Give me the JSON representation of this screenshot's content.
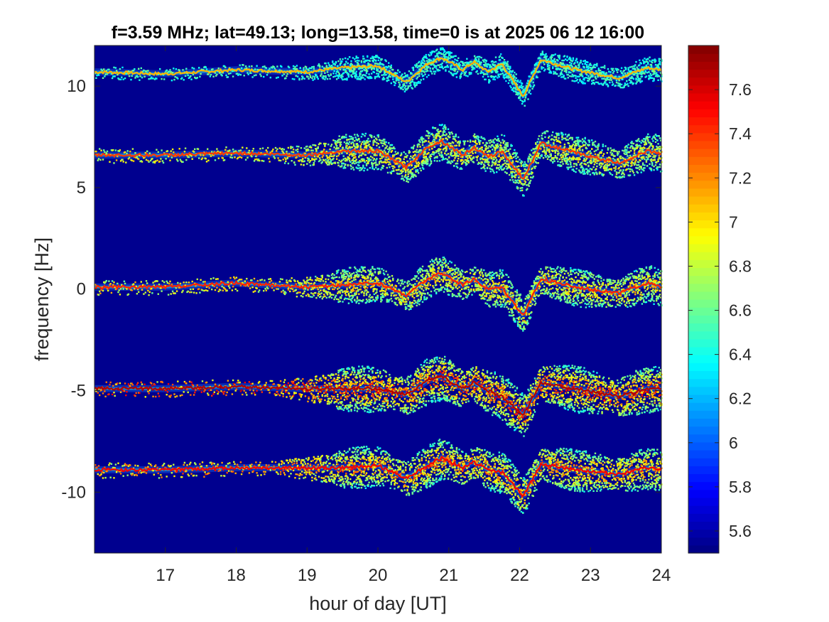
{
  "chart_data": {
    "type": "heatmap",
    "title": "f=3.59 MHz;  lat=49.13; long=13.58, time=0 is at 2025 06 12 16:00",
    "xlabel": "hour of day [UT]",
    "ylabel": "frequency [Hz]",
    "xlim": [
      16.0,
      24.0
    ],
    "ylim": [
      -13.0,
      12.0
    ],
    "x_ticks": [
      17,
      18,
      19,
      20,
      21,
      22,
      23,
      24
    ],
    "x_tick_labels": [
      "17",
      "18",
      "19",
      "20",
      "21",
      "22",
      "23",
      "24"
    ],
    "y_ticks": [
      10,
      5,
      0,
      -5,
      -10
    ],
    "y_tick_labels": [
      "10",
      "5",
      "0",
      "-5",
      "-10"
    ],
    "colorbar": {
      "range": [
        5.5,
        7.8
      ],
      "ticks": [
        7.6,
        7.4,
        7.2,
        7,
        6.8,
        6.6,
        6.4,
        6.2,
        6,
        5.8,
        5.6
      ],
      "tick_labels": [
        "7.6",
        "7.4",
        "7.2",
        "7",
        "6.8",
        "6.6",
        "6.4",
        "6.2",
        "6",
        "5.8",
        "5.6"
      ],
      "colormap": "jet"
    },
    "background_color": "#00008f",
    "traces": [
      {
        "base": 10.7,
        "intensity": 0.35,
        "spread": 0.06,
        "points": [
          [
            16.0,
            10.7
          ],
          [
            17.0,
            10.6
          ],
          [
            18.0,
            10.8
          ],
          [
            19.0,
            10.7
          ],
          [
            19.5,
            10.9
          ],
          [
            20.0,
            11.0
          ],
          [
            20.4,
            10.2
          ],
          [
            20.7,
            11.1
          ],
          [
            20.9,
            11.4
          ],
          [
            21.2,
            10.8
          ],
          [
            21.35,
            11.2
          ],
          [
            21.55,
            10.7
          ],
          [
            21.75,
            11.1
          ],
          [
            22.05,
            9.5
          ],
          [
            22.3,
            11.3
          ],
          [
            22.8,
            10.8
          ],
          [
            23.4,
            10.4
          ],
          [
            23.8,
            10.9
          ],
          [
            24.0,
            10.8
          ]
        ]
      },
      {
        "base": 6.6,
        "intensity": 0.65,
        "spread": 0.12,
        "points": [
          [
            16.0,
            6.6
          ],
          [
            17.0,
            6.6
          ],
          [
            18.0,
            6.7
          ],
          [
            19.0,
            6.6
          ],
          [
            19.5,
            6.8
          ],
          [
            20.0,
            6.8
          ],
          [
            20.4,
            6.0
          ],
          [
            20.7,
            7.0
          ],
          [
            20.9,
            7.3
          ],
          [
            21.2,
            6.6
          ],
          [
            21.35,
            7.0
          ],
          [
            21.55,
            6.5
          ],
          [
            21.75,
            6.8
          ],
          [
            22.05,
            5.4
          ],
          [
            22.3,
            7.2
          ],
          [
            22.8,
            6.7
          ],
          [
            23.4,
            6.2
          ],
          [
            23.8,
            6.8
          ],
          [
            24.0,
            6.7
          ]
        ]
      },
      {
        "base": 0.1,
        "intensity": 0.7,
        "spread": 0.12,
        "points": [
          [
            16.0,
            0.1
          ],
          [
            17.0,
            0.1
          ],
          [
            18.0,
            0.3
          ],
          [
            19.0,
            0.1
          ],
          [
            19.5,
            0.2
          ],
          [
            20.0,
            0.3
          ],
          [
            20.4,
            -0.3
          ],
          [
            20.7,
            0.5
          ],
          [
            20.9,
            0.8
          ],
          [
            21.2,
            0.2
          ],
          [
            21.35,
            0.5
          ],
          [
            21.55,
            0.0
          ],
          [
            21.75,
            0.1
          ],
          [
            22.05,
            -1.3
          ],
          [
            22.3,
            0.5
          ],
          [
            22.8,
            0.1
          ],
          [
            23.4,
            -0.2
          ],
          [
            23.8,
            0.3
          ],
          [
            24.0,
            0.1
          ]
        ]
      },
      {
        "base": -4.9,
        "intensity": 0.95,
        "spread": 0.16,
        "points": [
          [
            16.0,
            -4.9
          ],
          [
            17.0,
            -4.9
          ],
          [
            18.0,
            -4.8
          ],
          [
            19.0,
            -4.9
          ],
          [
            19.5,
            -4.9
          ],
          [
            20.0,
            -4.9
          ],
          [
            20.4,
            -5.2
          ],
          [
            20.7,
            -4.5
          ],
          [
            20.9,
            -4.3
          ],
          [
            21.2,
            -4.9
          ],
          [
            21.35,
            -4.6
          ],
          [
            21.55,
            -5.0
          ],
          [
            21.75,
            -5.3
          ],
          [
            22.05,
            -6.2
          ],
          [
            22.3,
            -4.6
          ],
          [
            22.8,
            -4.9
          ],
          [
            23.4,
            -5.3
          ],
          [
            23.8,
            -4.9
          ],
          [
            24.0,
            -4.9
          ]
        ]
      },
      {
        "base": -8.9,
        "intensity": 0.8,
        "spread": 0.14,
        "points": [
          [
            16.0,
            -8.9
          ],
          [
            17.0,
            -8.9
          ],
          [
            18.0,
            -8.8
          ],
          [
            19.0,
            -8.8
          ],
          [
            19.5,
            -8.8
          ],
          [
            20.0,
            -8.7
          ],
          [
            20.4,
            -9.3
          ],
          [
            20.7,
            -8.7
          ],
          [
            20.9,
            -8.3
          ],
          [
            21.2,
            -8.8
          ],
          [
            21.35,
            -8.5
          ],
          [
            21.55,
            -8.9
          ],
          [
            21.75,
            -9.0
          ],
          [
            22.05,
            -10.2
          ],
          [
            22.3,
            -8.6
          ],
          [
            22.8,
            -8.9
          ],
          [
            23.4,
            -9.1
          ],
          [
            23.8,
            -8.8
          ],
          [
            24.0,
            -8.9
          ]
        ]
      }
    ]
  }
}
